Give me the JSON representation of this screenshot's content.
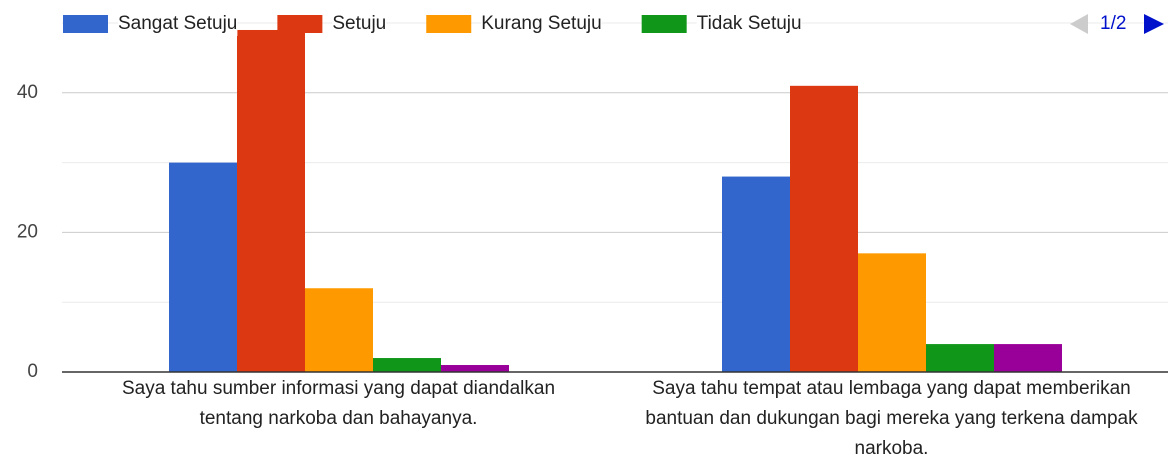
{
  "chart_data": {
    "type": "bar",
    "categories": [
      "Saya tahu sumber informasi yang dapat diandalkan tentang narkoba dan bahayanya.",
      "Saya tahu tempat atau lembaga yang dapat memberikan bantuan dan dukungan bagi mereka yang terkena dampak narkoba."
    ],
    "series": [
      {
        "name": "Sangat Setuju",
        "color": "#3366cc",
        "values": [
          30,
          28
        ]
      },
      {
        "name": "Setuju",
        "color": "#dc3912",
        "values": [
          49,
          41
        ]
      },
      {
        "name": "Kurang Setuju",
        "color": "#ff9900",
        "values": [
          12,
          17
        ]
      },
      {
        "name": "Tidak Setuju",
        "color": "#109618",
        "values": [
          2,
          4
        ]
      },
      {
        "color": "#990099",
        "values": [
          1,
          4
        ]
      }
    ],
    "ylim": [
      0,
      50
    ],
    "yticks": [
      0,
      20,
      40
    ],
    "minor_yticks": [
      10,
      30,
      50
    ],
    "grid": true,
    "legend": "top",
    "legend_page": "1/2"
  }
}
